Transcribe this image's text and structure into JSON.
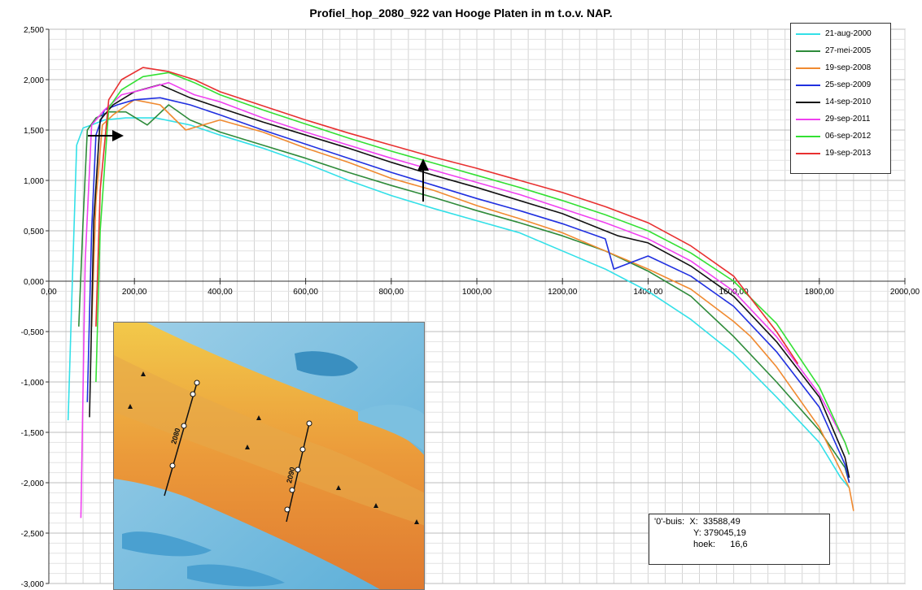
{
  "chart_data": {
    "type": "line",
    "title": "Profiel_hop_2080_922 van Hooge Platen in m t.o.v. NAP.",
    "xlabel": "",
    "ylabel": "",
    "xlim": [
      0,
      2000
    ],
    "ylim": [
      -3,
      2.5
    ],
    "x_ticks": [
      0,
      200,
      400,
      600,
      800,
      1000,
      1200,
      1400,
      1600,
      1800,
      2000
    ],
    "x_tick_labels": [
      "0,00",
      "200,00",
      "400,00",
      "600,00",
      "800,00",
      "1000,00",
      "1200,00",
      "1400,00",
      "1600,00",
      "1800,00",
      "2000,00"
    ],
    "y_ticks": [
      2.5,
      2.0,
      1.5,
      1.0,
      0.5,
      0.0,
      -0.5,
      -1.0,
      -1.5,
      -2.0,
      -2.5,
      -3.0
    ],
    "y_tick_labels": [
      "2,500",
      "2,000",
      "1,500",
      "1,000",
      "0,500",
      "0,000",
      "-0,500",
      "-1,000",
      "-1,500",
      "-2,000",
      "-2,500",
      "-3,000"
    ],
    "grid": true,
    "legend_position": "top-right",
    "series": [
      {
        "name": "21-aug-2000",
        "color": "#33e0e8",
        "x": [
          45,
          55,
          65,
          80,
          100,
          130,
          180,
          250,
          330,
          400,
          500,
          600,
          700,
          800,
          900,
          1000,
          1100,
          1200,
          1300,
          1400,
          1500,
          1600,
          1700,
          1800,
          1850,
          1870
        ],
        "y": [
          -1.38,
          0.0,
          1.35,
          1.52,
          1.55,
          1.6,
          1.62,
          1.62,
          1.55,
          1.45,
          1.32,
          1.17,
          1.0,
          0.85,
          0.72,
          0.6,
          0.48,
          0.3,
          0.12,
          -0.1,
          -0.38,
          -0.72,
          -1.15,
          -1.6,
          -1.95,
          -2.05
        ]
      },
      {
        "name": "27-mei-2005",
        "color": "#2e8b3a",
        "x": [
          70,
          80,
          90,
          110,
          140,
          180,
          230,
          280,
          330,
          400,
          500,
          600,
          700,
          800,
          900,
          1000,
          1100,
          1200,
          1300,
          1400,
          1500,
          1600,
          1700,
          1800,
          1860,
          1870
        ],
        "y": [
          -0.45,
          0.6,
          1.5,
          1.62,
          1.68,
          1.68,
          1.55,
          1.75,
          1.6,
          1.48,
          1.35,
          1.22,
          1.08,
          0.95,
          0.83,
          0.7,
          0.58,
          0.45,
          0.3,
          0.1,
          -0.15,
          -0.55,
          -1.0,
          -1.48,
          -1.85,
          -2.0
        ]
      },
      {
        "name": "19-sep-2008",
        "color": "#f08a30",
        "x": [
          100,
          110,
          125,
          150,
          200,
          260,
          320,
          400,
          500,
          600,
          700,
          800,
          900,
          1000,
          1100,
          1200,
          1300,
          1400,
          1460,
          1500,
          1600,
          1640,
          1700,
          1800,
          1870,
          1880
        ],
        "y": [
          -0.45,
          0.8,
          1.55,
          1.65,
          1.8,
          1.75,
          1.5,
          1.6,
          1.48,
          1.32,
          1.18,
          1.02,
          0.9,
          0.75,
          0.62,
          0.48,
          0.3,
          0.12,
          0.0,
          -0.08,
          -0.4,
          -0.55,
          -0.85,
          -1.45,
          -2.05,
          -2.28
        ]
      },
      {
        "name": "25-sep-2009",
        "color": "#2030e0",
        "x": [
          90,
          100,
          110,
          130,
          160,
          200,
          260,
          330,
          400,
          500,
          600,
          700,
          800,
          900,
          1000,
          1100,
          1200,
          1300,
          1320,
          1400,
          1500,
          1600,
          1700,
          1800,
          1860,
          1870
        ],
        "y": [
          -1.2,
          0.5,
          1.45,
          1.7,
          1.75,
          1.8,
          1.82,
          1.75,
          1.65,
          1.5,
          1.36,
          1.22,
          1.08,
          0.95,
          0.82,
          0.7,
          0.57,
          0.42,
          0.12,
          0.25,
          0.05,
          -0.25,
          -0.7,
          -1.25,
          -1.82,
          -2.0
        ]
      },
      {
        "name": "14-sep-2010",
        "color": "#111111",
        "x": [
          95,
          105,
          120,
          150,
          200,
          260,
          330,
          400,
          500,
          600,
          700,
          800,
          900,
          1000,
          1100,
          1200,
          1300,
          1330,
          1400,
          1500,
          1600,
          1700,
          1800,
          1860,
          1870
        ],
        "y": [
          -1.35,
          0.6,
          1.6,
          1.75,
          1.88,
          1.95,
          1.82,
          1.72,
          1.58,
          1.45,
          1.32,
          1.18,
          1.05,
          0.93,
          0.8,
          0.67,
          0.5,
          0.45,
          0.38,
          0.15,
          -0.15,
          -0.6,
          -1.15,
          -1.75,
          -1.95
        ]
      },
      {
        "name": "29-sep-2011",
        "color": "#f040f0",
        "x": [
          75,
          85,
          100,
          130,
          170,
          220,
          280,
          340,
          400,
          500,
          600,
          700,
          800,
          900,
          1000,
          1100,
          1200,
          1300,
          1400,
          1500,
          1600,
          1700,
          1800,
          1860,
          1870
        ],
        "y": [
          -2.35,
          0.2,
          1.55,
          1.7,
          1.85,
          1.9,
          1.97,
          1.85,
          1.78,
          1.62,
          1.48,
          1.35,
          1.22,
          1.1,
          0.98,
          0.86,
          0.72,
          0.58,
          0.42,
          0.2,
          -0.1,
          -0.55,
          -1.12,
          -1.6,
          -1.72
        ]
      },
      {
        "name": "06-sep-2012",
        "color": "#33e033",
        "x": [
          110,
          120,
          140,
          170,
          220,
          280,
          340,
          400,
          500,
          600,
          700,
          800,
          900,
          1000,
          1100,
          1200,
          1300,
          1400,
          1500,
          1600,
          1700,
          1800,
          1860,
          1870
        ],
        "y": [
          -1.0,
          0.5,
          1.72,
          1.9,
          2.03,
          2.07,
          1.97,
          1.85,
          1.7,
          1.56,
          1.42,
          1.29,
          1.17,
          1.05,
          0.93,
          0.8,
          0.66,
          0.5,
          0.28,
          0.0,
          -0.42,
          -1.05,
          -1.6,
          -1.72
        ]
      },
      {
        "name": "19-sep-2013",
        "color": "#e83030",
        "x": [
          110,
          120,
          140,
          170,
          220,
          280,
          340,
          400,
          500,
          600,
          700,
          800,
          900,
          1000,
          1100,
          1200,
          1300,
          1400,
          1500,
          1600,
          1700,
          1750
        ],
        "y": [
          -0.45,
          0.9,
          1.8,
          2.0,
          2.12,
          2.08,
          2.0,
          1.88,
          1.74,
          1.6,
          1.47,
          1.35,
          1.23,
          1.12,
          1.0,
          0.88,
          0.74,
          0.58,
          0.35,
          0.05,
          -0.5,
          -0.82
        ]
      }
    ]
  },
  "info": {
    "line1": "'0'-buis:  X:  33588,49",
    "line2": "Y: 379045,19",
    "line3": "hoek:      16,6"
  },
  "map": {
    "label_a": "2080",
    "label_b": "2090"
  }
}
